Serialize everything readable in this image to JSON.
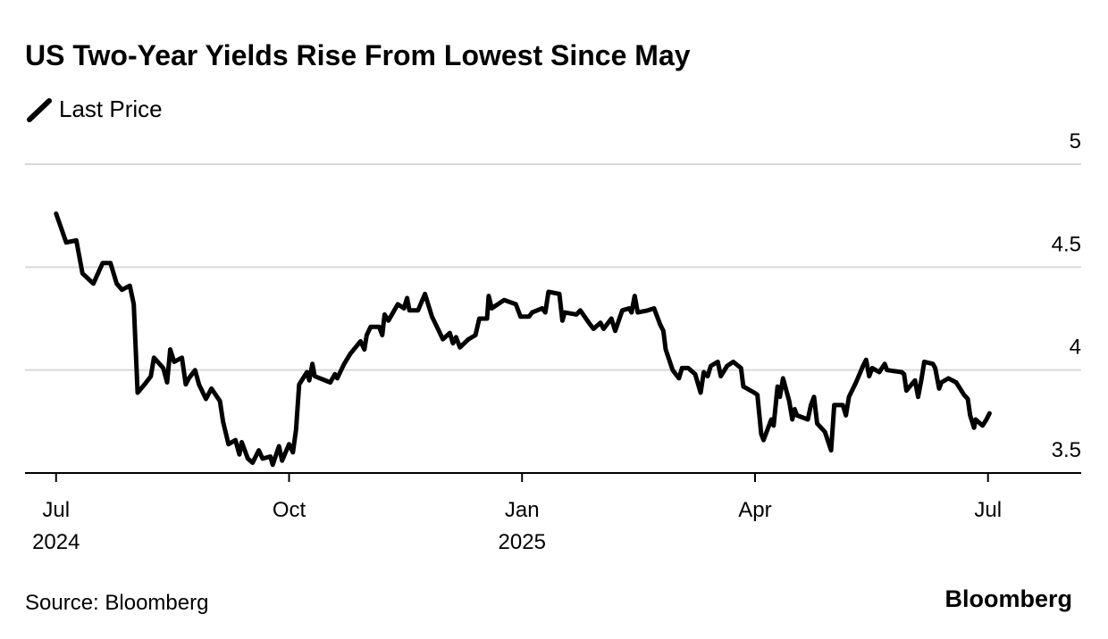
{
  "chart_data": {
    "type": "line",
    "title": "US Two-Year Yields Rise From Lowest Since May",
    "source": "Source: Bloomberg",
    "brand": "Bloomberg",
    "x": [
      0,
      0.13,
      0.26,
      0.34,
      0.48,
      0.6,
      0.7,
      0.78,
      0.85,
      0.95,
      1.0,
      1.02,
      1.05,
      1.14,
      1.22,
      1.26,
      1.38,
      1.43,
      1.47,
      1.52,
      1.62,
      1.67,
      1.71,
      1.79,
      1.84,
      1.93,
      2.0,
      2.11,
      2.15,
      2.22,
      2.31,
      2.36,
      2.39,
      2.47,
      2.53,
      2.61,
      2.66,
      2.76,
      2.79,
      2.87,
      2.91,
      3.0,
      3.05,
      3.09,
      3.13,
      3.23,
      3.26,
      3.3,
      3.33,
      3.53,
      3.59,
      3.62,
      3.71,
      3.79,
      3.92,
      3.97,
      4.0,
      4.05,
      4.16,
      4.2,
      4.23,
      4.28,
      4.4,
      4.48,
      4.52,
      4.55,
      4.66,
      4.75,
      4.84,
      4.93,
      4.98,
      5.07,
      5.11,
      5.15,
      5.2,
      5.31,
      5.4,
      5.45,
      5.55,
      5.57,
      5.61,
      5.77,
      5.92,
      5.98,
      6.09,
      6.13,
      6.26,
      6.3,
      6.34,
      6.48,
      6.52,
      6.55,
      6.7,
      6.75,
      6.86,
      6.92,
      7.01,
      7.05,
      7.15,
      7.2,
      7.29,
      7.38,
      7.41,
      7.45,
      7.49,
      7.62,
      7.7,
      7.78,
      7.82,
      7.85,
      7.94,
      8.02,
      8.06,
      8.14,
      8.23,
      8.3,
      8.34,
      8.39,
      8.43,
      8.52,
      8.56,
      8.64,
      8.72,
      8.82,
      8.85,
      8.99,
      9.03,
      9.08,
      9.11,
      9.21,
      9.24,
      9.29,
      9.32,
      9.36,
      9.44,
      9.48,
      9.51,
      9.54,
      9.68,
      9.72,
      9.76,
      9.8,
      9.9,
      9.98,
      10.02,
      10.13,
      10.17,
      10.21,
      10.3,
      10.39,
      10.43,
      10.47,
      10.51,
      10.6,
      10.67,
      10.7,
      10.89,
      10.92,
      10.95,
      11.06,
      11.1,
      11.14,
      11.18,
      11.29,
      11.32,
      11.37,
      11.4,
      11.49,
      11.59,
      11.69,
      11.74,
      11.77,
      11.82,
      11.84,
      11.93,
      11.98,
      12.02
    ],
    "series": [
      {
        "name": "Last Price",
        "color": "#000000",
        "values": [
          4.76,
          4.62,
          4.63,
          4.47,
          4.42,
          4.52,
          4.52,
          4.42,
          4.39,
          4.41,
          4.32,
          4.15,
          3.89,
          3.93,
          3.97,
          4.06,
          4.01,
          3.94,
          4.1,
          4.04,
          4.06,
          3.93,
          3.96,
          4.0,
          3.93,
          3.86,
          3.91,
          3.85,
          3.75,
          3.64,
          3.66,
          3.59,
          3.65,
          3.57,
          3.55,
          3.61,
          3.57,
          3.58,
          3.54,
          3.63,
          3.56,
          3.64,
          3.6,
          3.71,
          3.93,
          3.99,
          3.95,
          4.03,
          3.97,
          3.94,
          3.98,
          3.96,
          4.03,
          4.08,
          4.14,
          4.1,
          4.17,
          4.21,
          4.21,
          4.17,
          4.27,
          4.24,
          4.32,
          4.3,
          4.35,
          4.29,
          4.29,
          4.37,
          4.26,
          4.19,
          4.15,
          4.18,
          4.13,
          4.16,
          4.11,
          4.15,
          4.17,
          4.25,
          4.25,
          4.36,
          4.3,
          4.34,
          4.32,
          4.26,
          4.26,
          4.28,
          4.3,
          4.28,
          4.38,
          4.37,
          4.24,
          4.28,
          4.27,
          4.29,
          4.23,
          4.2,
          4.23,
          4.2,
          4.25,
          4.19,
          4.29,
          4.3,
          4.28,
          4.36,
          4.28,
          4.29,
          4.3,
          4.22,
          4.19,
          4.1,
          4.0,
          3.96,
          4.01,
          4.01,
          3.98,
          3.89,
          3.99,
          3.97,
          4.02,
          4.04,
          3.97,
          4.02,
          4.04,
          4.01,
          3.92,
          3.89,
          3.88,
          3.69,
          3.66,
          3.76,
          3.73,
          3.92,
          3.87,
          3.96,
          3.85,
          3.76,
          3.81,
          3.78,
          3.76,
          3.83,
          3.87,
          3.74,
          3.7,
          3.61,
          3.83,
          3.83,
          3.78,
          3.87,
          3.94,
          4.02,
          4.05,
          3.97,
          4.01,
          3.99,
          4.03,
          4.0,
          3.99,
          3.98,
          3.9,
          3.95,
          3.87,
          3.95,
          4.04,
          4.03,
          4.01,
          3.91,
          3.94,
          3.96,
          3.94,
          3.88,
          3.86,
          3.78,
          3.72,
          3.76,
          3.73,
          3.76,
          3.79
        ]
      }
    ],
    "xlim": [
      -0.4,
      13.2
    ],
    "xticks": [
      {
        "value": 0,
        "label": "Jul"
      },
      {
        "value": 3,
        "label": "Oct"
      },
      {
        "value": 6,
        "label": "Jan"
      },
      {
        "value": 9,
        "label": "Apr"
      },
      {
        "value": 12,
        "label": "Jul"
      }
    ],
    "xtick_years": [
      {
        "value": 0,
        "label": "2024"
      },
      {
        "value": 6,
        "label": "2025"
      }
    ],
    "ylim": [
      3.5,
      5
    ],
    "yticks": [
      3.5,
      4,
      4.5,
      5
    ],
    "grid": true
  }
}
